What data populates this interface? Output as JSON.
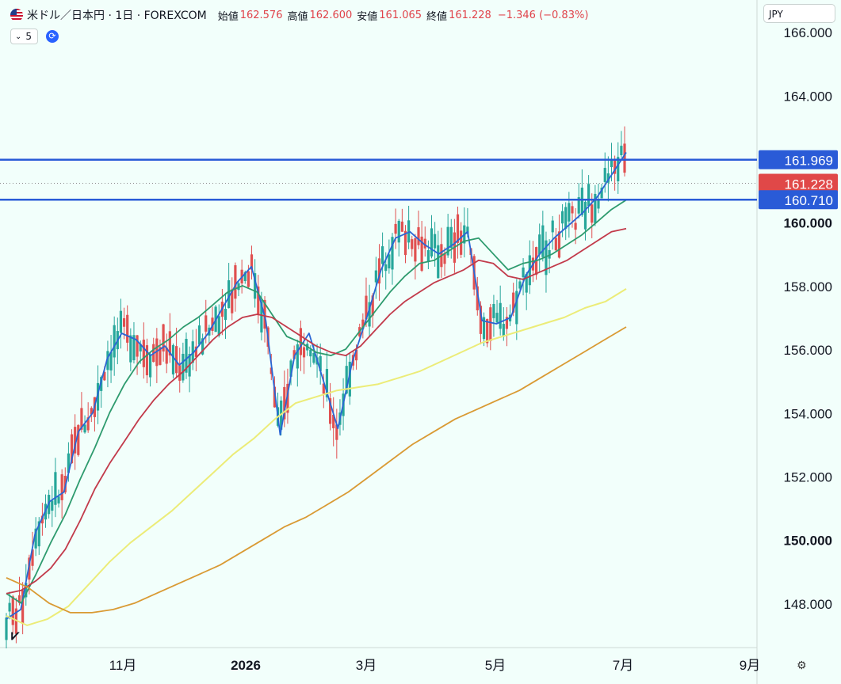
{
  "header": {
    "symbol": "米ドル／日本円 · 1日 · FOREXCOM",
    "open_label": "始値",
    "open": "162.576",
    "high_label": "高値",
    "high": "162.600",
    "low_label": "安値",
    "low": "161.065",
    "close_label": "終値",
    "close": "161.228",
    "change": "−1.346 (−0.83%)"
  },
  "indicator": {
    "value": "5"
  },
  "currency": "JPY",
  "colors": {
    "background": "#f2fffb",
    "up": "#26a69a",
    "down": "#e05050",
    "hline": "#2a5bd7",
    "price_tag": "#e04848",
    "ma_blue": "#2a66d4",
    "ma_green": "#2e9b6e",
    "ma_red": "#c23a4a",
    "ma_yellow": "#ecec78",
    "ma_orange": "#d99a33"
  },
  "chart_data": {
    "type": "line",
    "title": "米ドル／日本円 · 1日 · FOREXCOM",
    "y_ticks": [
      "166.000",
      "164.000",
      "162.000",
      "160.000",
      "158.000",
      "156.000",
      "154.000",
      "152.000",
      "150.000",
      "148.000"
    ],
    "y_range": [
      146.6,
      167.0
    ],
    "x_ticks": [
      "11月",
      "2026",
      "3月",
      "5月",
      "7月",
      "9月"
    ],
    "horizontal_lines": [
      161.969,
      160.71
    ],
    "price_labels": [
      {
        "text": "161.969",
        "value": 161.969,
        "kind": "hline"
      },
      {
        "text": "161.228",
        "value": 161.228,
        "kind": "last"
      },
      {
        "text": "160.710",
        "value": 160.71,
        "kind": "hline"
      }
    ],
    "series": [
      {
        "color": "ma_blue",
        "values": [
          147.5,
          147.8,
          150.2,
          151.2,
          151.5,
          153.4,
          154.0,
          155.7,
          156.5,
          156.3,
          155.8,
          156.1,
          155.5,
          155.9,
          156.5,
          157.3,
          158.1,
          158.6,
          156.9,
          153.3,
          155.8,
          156.5,
          155.0,
          153.5,
          155.6,
          157.0,
          158.5,
          159.5,
          159.7,
          159.3,
          159.0,
          159.3,
          159.7,
          156.9,
          156.8,
          157.0,
          158.3,
          159.0,
          159.5,
          159.9,
          160.3,
          160.8,
          161.5,
          162.2
        ]
      },
      {
        "color": "ma_green",
        "values": [
          148.3,
          148.0,
          148.9,
          149.9,
          150.8,
          151.9,
          152.9,
          154.0,
          154.9,
          155.6,
          156.0,
          156.3,
          156.7,
          157.0,
          157.4,
          157.8,
          158.0,
          157.8,
          157.1,
          156.4,
          156.2,
          155.9,
          155.8,
          156.0,
          156.6,
          157.2,
          157.8,
          158.3,
          158.7,
          158.8,
          159.1,
          159.4,
          159.5,
          159.0,
          158.5,
          158.7,
          158.8,
          159.0,
          159.3,
          159.6,
          160.0,
          160.4,
          160.7
        ]
      },
      {
        "color": "ma_red",
        "values": [
          148.3,
          148.4,
          148.7,
          149.1,
          149.7,
          150.6,
          151.6,
          152.4,
          153.1,
          153.8,
          154.4,
          154.9,
          155.3,
          155.8,
          156.3,
          156.7,
          157.0,
          157.1,
          157.0,
          156.7,
          156.4,
          156.1,
          155.9,
          155.8,
          156.1,
          156.6,
          157.1,
          157.5,
          157.8,
          158.1,
          158.3,
          158.5,
          158.8,
          158.7,
          158.3,
          158.2,
          158.4,
          158.6,
          158.8,
          159.1,
          159.4,
          159.7,
          159.8
        ]
      },
      {
        "color": "ma_yellow",
        "values": [
          147.6,
          147.3,
          147.5,
          147.9,
          148.6,
          149.3,
          149.9,
          150.4,
          150.9,
          151.5,
          152.1,
          152.7,
          153.2,
          153.8,
          154.3,
          154.5,
          154.7,
          154.8,
          154.9,
          155.1,
          155.3,
          155.6,
          155.9,
          156.2,
          156.4,
          156.6,
          156.8,
          157.0,
          157.3,
          157.5,
          157.9
        ]
      },
      {
        "color": "ma_orange",
        "values": [
          148.8,
          148.5,
          148.0,
          147.7,
          147.7,
          147.8,
          148.0,
          148.3,
          148.6,
          148.9,
          149.2,
          149.6,
          150.0,
          150.4,
          150.7,
          151.1,
          151.5,
          152.0,
          152.5,
          153.0,
          153.4,
          153.8,
          154.1,
          154.4,
          154.7,
          155.1,
          155.5,
          155.9,
          156.3,
          156.7
        ]
      }
    ]
  }
}
